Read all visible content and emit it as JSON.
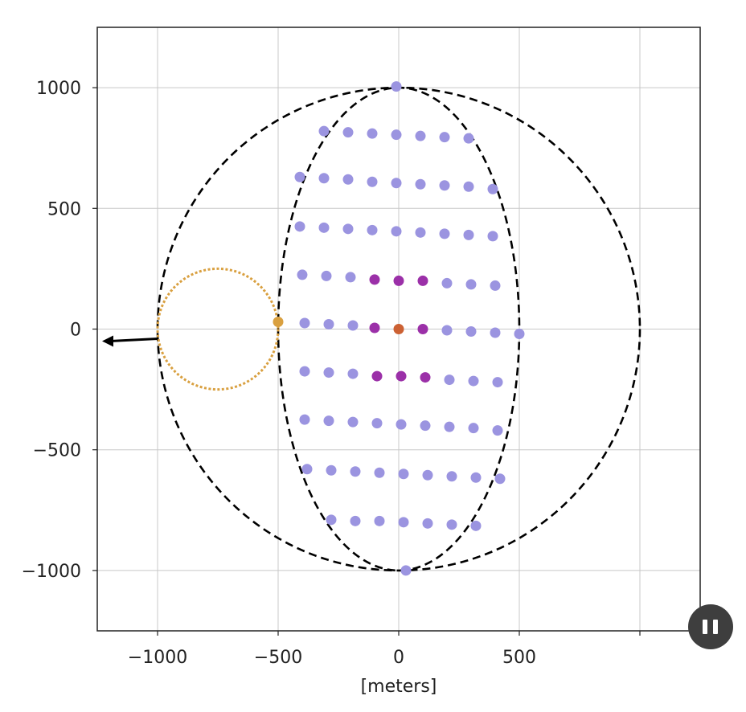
{
  "chart_data": {
    "type": "scatter",
    "xlabel": "[meters]",
    "ylabel": "",
    "xlim": [
      -1250,
      1250
    ],
    "ylim": [
      -1250,
      1250
    ],
    "xticks": [
      -1000,
      -500,
      0,
      500,
      1000
    ],
    "xtick_labels": [
      "−1000",
      "−500",
      "0",
      "500",
      ""
    ],
    "yticks": [
      1000,
      500,
      0,
      -500,
      -1000
    ],
    "ytick_labels": [
      "1000",
      "500",
      "0",
      "−500",
      "−1000"
    ],
    "grid": true,
    "curves": [
      {
        "name": "outer-circle",
        "shape": "ellipse",
        "cx": 0,
        "cy": 0,
        "rx": 1000,
        "ry": 1000,
        "color": "#000000",
        "style": "dashed"
      },
      {
        "name": "inner-ellipse",
        "shape": "ellipse",
        "cx": 0,
        "cy": 0,
        "rx": 500,
        "ry": 1000,
        "color": "#000000",
        "style": "dashed"
      },
      {
        "name": "small-circle",
        "shape": "ellipse",
        "cx": -750,
        "cy": 0,
        "rx": 250,
        "ry": 250,
        "color": "#d9a040",
        "style": "dotted"
      }
    ],
    "arrow": {
      "from": [
        -1000,
        -40
      ],
      "to": [
        -1230,
        -50
      ],
      "color": "#000000"
    },
    "series": [
      {
        "color": "#9b94e0",
        "points": [
          [
            -10,
            1005
          ],
          [
            -310,
            820
          ],
          [
            -210,
            815
          ],
          [
            -110,
            810
          ],
          [
            -10,
            805
          ],
          [
            90,
            800
          ],
          [
            190,
            795
          ],
          [
            290,
            790
          ],
          [
            -410,
            630
          ],
          [
            -310,
            625
          ],
          [
            -210,
            620
          ],
          [
            -110,
            610
          ],
          [
            -10,
            605
          ],
          [
            90,
            600
          ],
          [
            190,
            595
          ],
          [
            290,
            590
          ],
          [
            390,
            580
          ],
          [
            -410,
            425
          ],
          [
            -310,
            420
          ],
          [
            -210,
            415
          ],
          [
            -110,
            410
          ],
          [
            -10,
            405
          ],
          [
            90,
            400
          ],
          [
            190,
            395
          ],
          [
            290,
            390
          ],
          [
            390,
            385
          ],
          [
            -400,
            225
          ],
          [
            -300,
            220
          ],
          [
            -200,
            215
          ],
          [
            200,
            190
          ],
          [
            300,
            185
          ],
          [
            400,
            180
          ],
          [
            -390,
            25
          ],
          [
            -290,
            20
          ],
          [
            -190,
            15
          ],
          [
            200,
            -5
          ],
          [
            300,
            -10
          ],
          [
            400,
            -15
          ],
          [
            500,
            -20
          ],
          [
            -390,
            -175
          ],
          [
            -290,
            -180
          ],
          [
            -190,
            -185
          ],
          [
            210,
            -210
          ],
          [
            310,
            -215
          ],
          [
            410,
            -220
          ],
          [
            -390,
            -375
          ],
          [
            -290,
            -380
          ],
          [
            -190,
            -385
          ],
          [
            -90,
            -390
          ],
          [
            10,
            -395
          ],
          [
            110,
            -400
          ],
          [
            210,
            -405
          ],
          [
            310,
            -410
          ],
          [
            410,
            -420
          ],
          [
            -380,
            -580
          ],
          [
            -280,
            -585
          ],
          [
            -180,
            -590
          ],
          [
            -80,
            -595
          ],
          [
            20,
            -600
          ],
          [
            120,
            -605
          ],
          [
            220,
            -610
          ],
          [
            320,
            -615
          ],
          [
            420,
            -620
          ],
          [
            -280,
            -790
          ],
          [
            -180,
            -795
          ],
          [
            -80,
            -795
          ],
          [
            20,
            -800
          ],
          [
            120,
            -805
          ],
          [
            220,
            -810
          ],
          [
            320,
            -815
          ],
          [
            30,
            -1000
          ]
        ]
      },
      {
        "color": "#9b30a8",
        "points": [
          [
            -100,
            205
          ],
          [
            0,
            200
          ],
          [
            100,
            200
          ],
          [
            -100,
            5
          ],
          [
            100,
            0
          ],
          [
            -90,
            -195
          ],
          [
            10,
            -195
          ],
          [
            110,
            -200
          ]
        ]
      },
      {
        "color": "#cc6133",
        "points": [
          [
            0,
            0
          ]
        ]
      },
      {
        "color": "#d9a040",
        "points": [
          [
            -500,
            30
          ]
        ]
      }
    ]
  },
  "controls": {
    "pause_icon": "pause-icon"
  }
}
